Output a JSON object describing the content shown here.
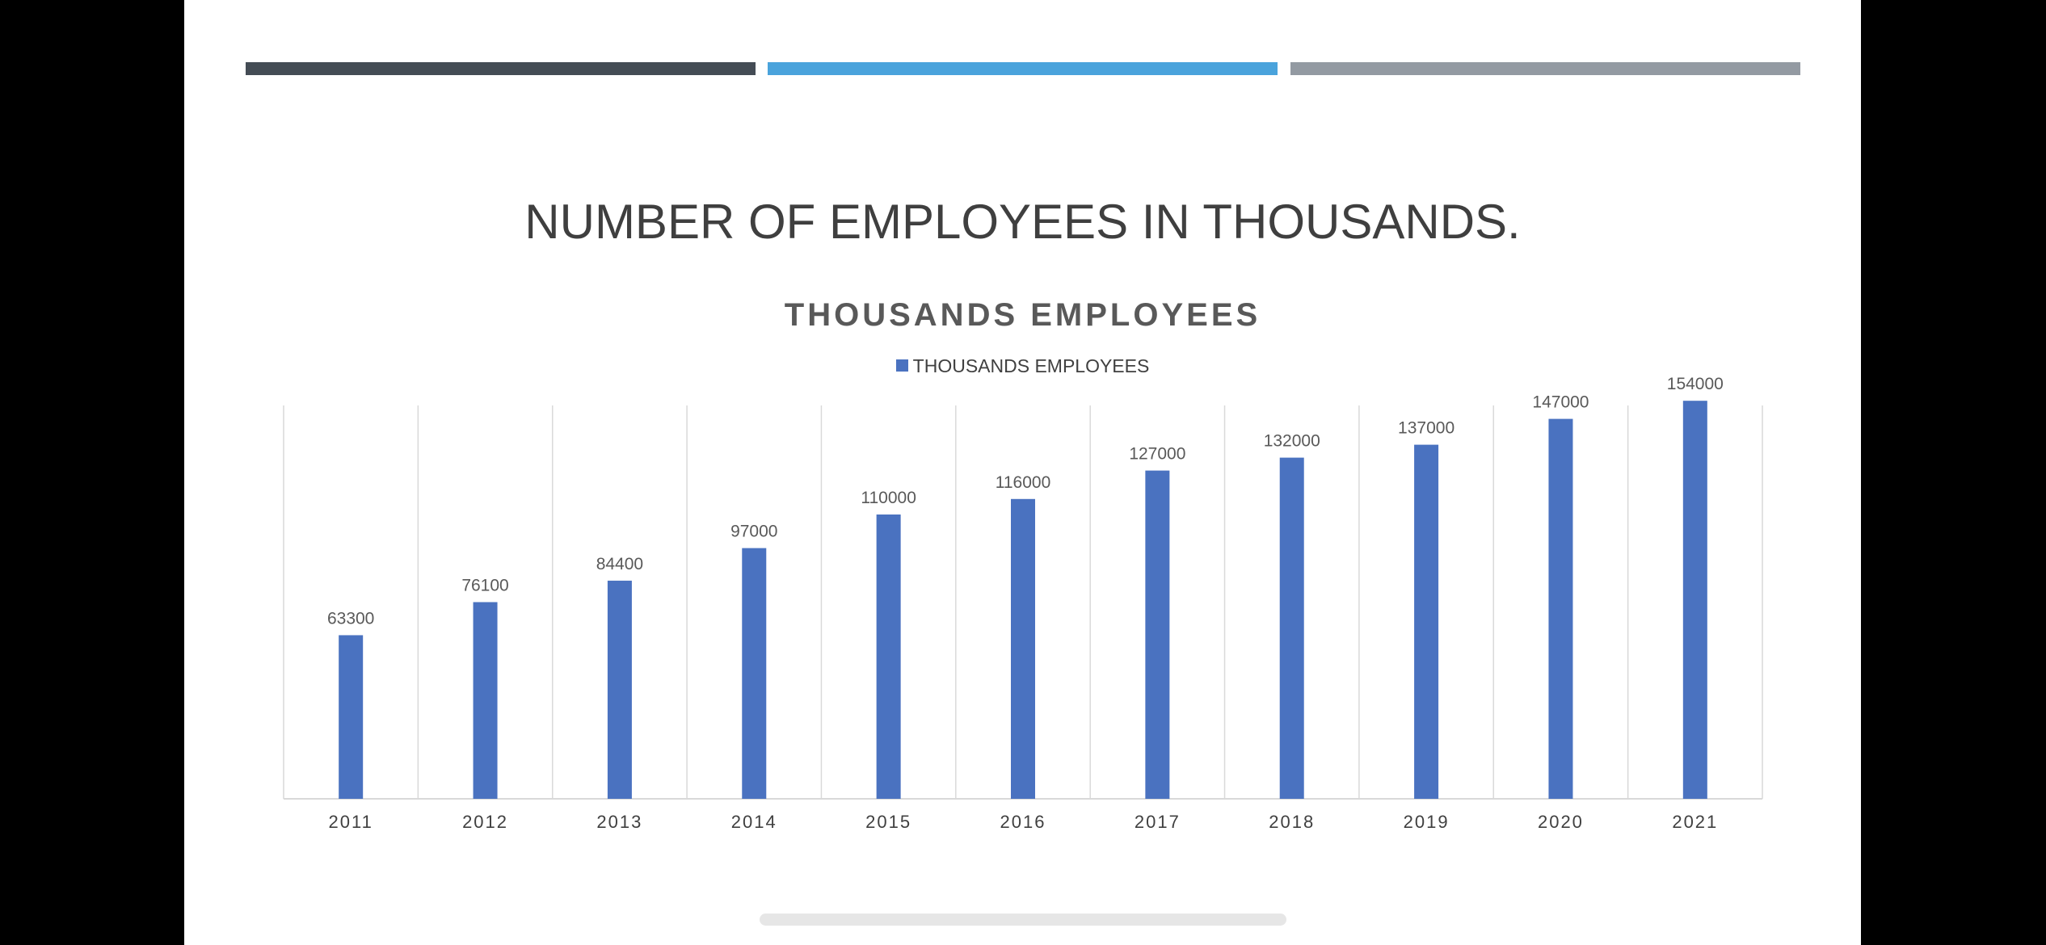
{
  "slide": {
    "title": "NUMBER OF EMPLOYEES IN THOUSANDS.",
    "accent_colors": [
      "#444c55",
      "#4aa3dc",
      "#939aa2"
    ]
  },
  "chart_data": {
    "type": "bar",
    "title": "THOUSANDS EMPLOYEES",
    "categories": [
      "2011",
      "2012",
      "2013",
      "2014",
      "2015",
      "2016",
      "2017",
      "2018",
      "2019",
      "2020",
      "2021"
    ],
    "series": [
      {
        "name": "THOUSANDS EMPLOYEES",
        "values": [
          63300,
          76100,
          84400,
          97000,
          110000,
          116000,
          127000,
          132000,
          137000,
          147000,
          154000
        ],
        "color": "#4a72c0"
      }
    ],
    "data_labels": [
      "63300",
      "76100",
      "84400",
      "97000",
      "110000",
      "116000",
      "127000",
      "132000",
      "137000",
      "147000",
      "154000"
    ],
    "xlabel": "",
    "ylabel": "",
    "ylim": [
      0,
      180000
    ],
    "legend_position": "top-center",
    "grid": "vertical category separators"
  }
}
